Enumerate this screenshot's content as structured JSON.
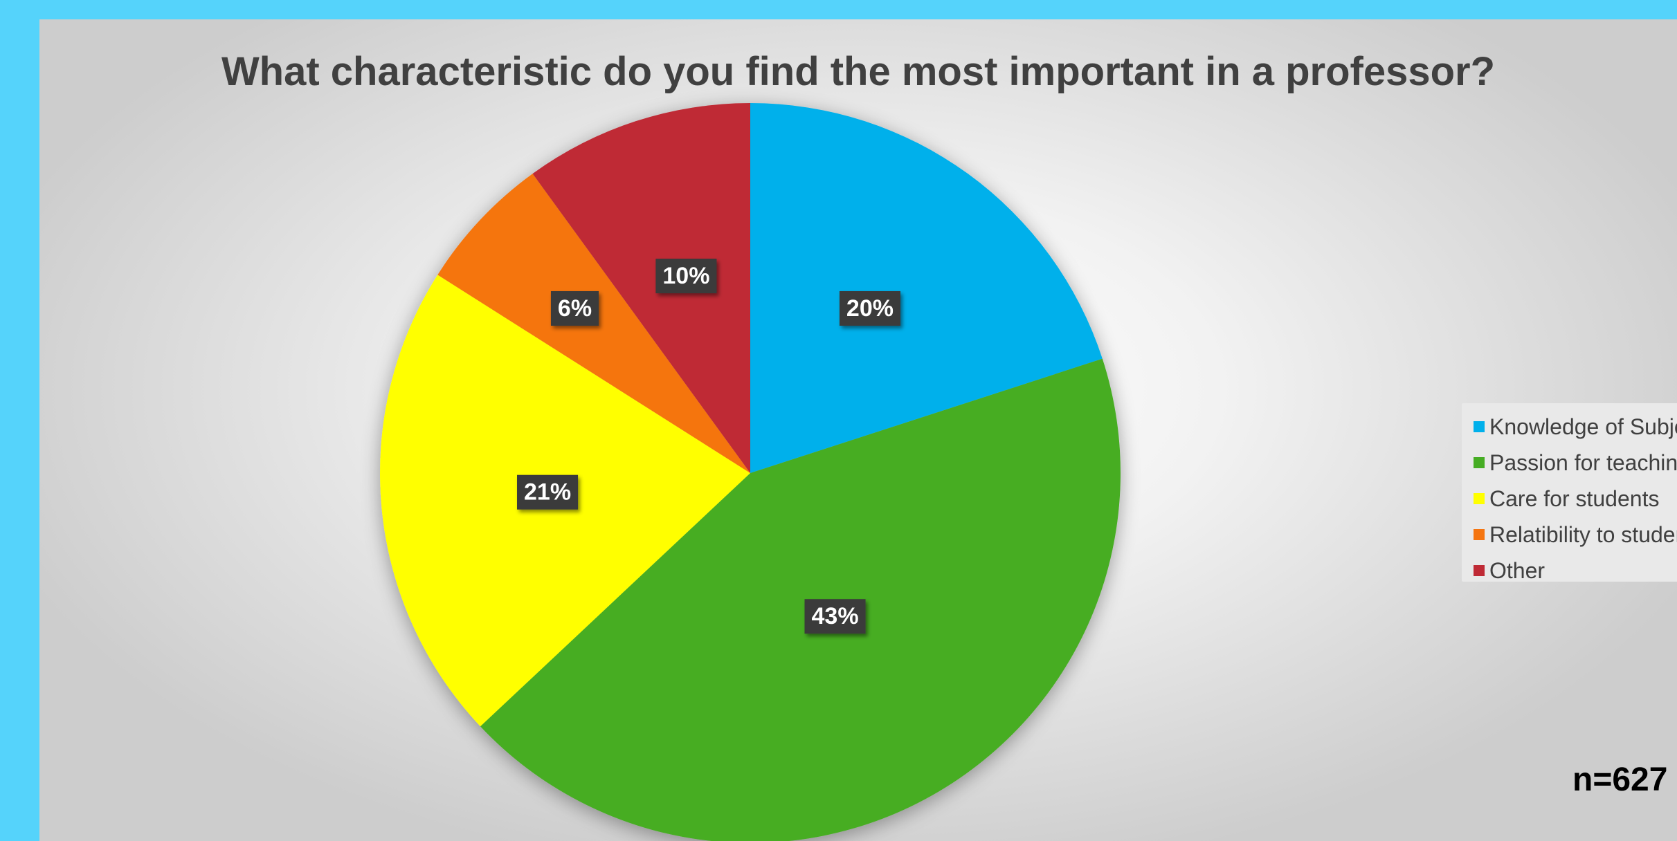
{
  "chart_data": {
    "type": "pie",
    "title": "What characteristic do you find the most important in a professor?",
    "categories": [
      "Knowledge of Subject",
      "Passion for teaching",
      "Care for students",
      "Relatibility to students",
      "Other"
    ],
    "values": [
      20,
      43,
      21,
      6,
      10
    ],
    "data_labels": [
      "20%",
      "43%",
      "21%",
      "6%",
      "10%"
    ],
    "colors": [
      "#00b0eb",
      "#46ad24",
      "#ffff00",
      "#f57510",
      "#bf2a35"
    ],
    "start_angle_deg": 0,
    "direction": "clockwise",
    "legend_position": "right",
    "note": "n=627"
  }
}
